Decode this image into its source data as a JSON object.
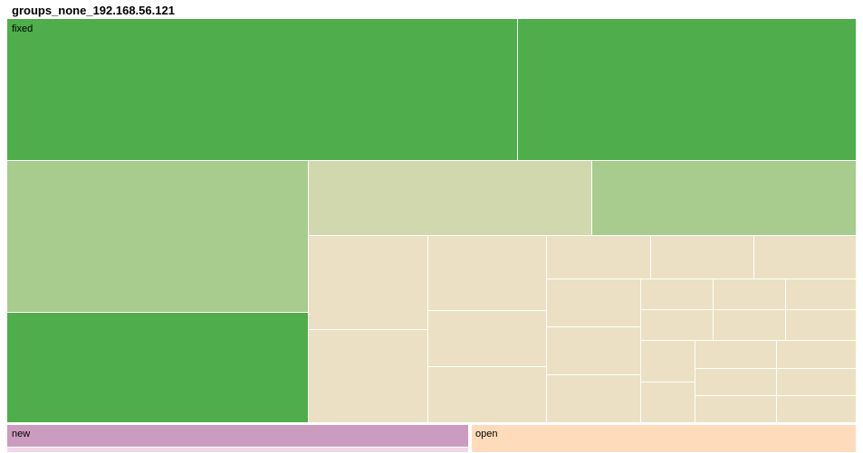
{
  "title": "groups_none_192.168.56.121",
  "colors": {
    "strong_green": "#4fae4b",
    "light_green": "#a8cb8e",
    "sage": "#d1d8ad",
    "beige": "#ebe0c3",
    "pink": "#cc9bc0",
    "peach": "#fedcbb",
    "light_pink": "#f0d8e8"
  },
  "chart_data": {
    "type": "treemap",
    "title": "groups_none_192.168.56.121",
    "groups": [
      {
        "name": "fixed",
        "label": "fixed",
        "color": "#4fae4b",
        "value": 0.82
      },
      {
        "name": "new",
        "label": "new",
        "color": "#cc9bc0",
        "value": 0.063
      },
      {
        "name": "open",
        "label": "open",
        "color": "#fedcbb",
        "value": 0.055
      }
    ]
  }
}
